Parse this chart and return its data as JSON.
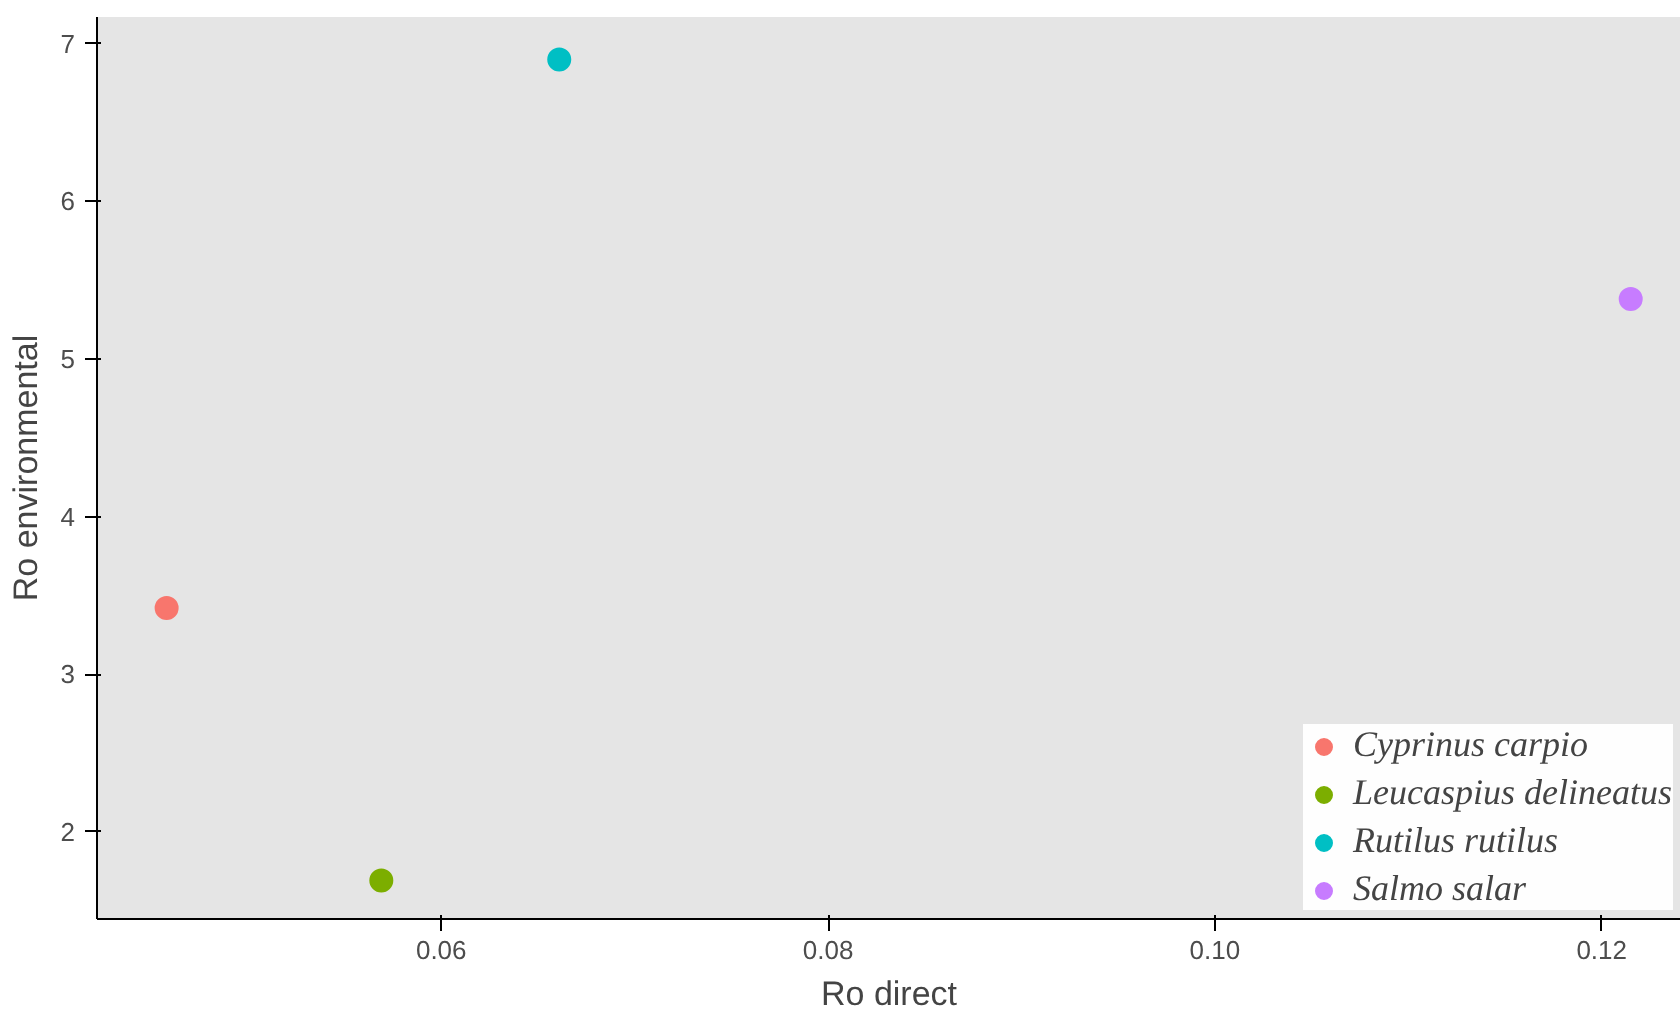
{
  "chart_data": {
    "type": "scatter",
    "xlabel": "Ro direct",
    "ylabel": "Ro environmental",
    "series": [
      {
        "name": "Cyprinus carpio",
        "color": "#f8766d",
        "x": [
          0.0458
        ],
        "values": [
          3.42
        ]
      },
      {
        "name": "Leucaspius delineatus",
        "color": "#7cae00",
        "x": [
          0.0569
        ],
        "values": [
          1.69
        ]
      },
      {
        "name": "Rutilus rutilus",
        "color": "#00bfc4",
        "x": [
          0.0661
        ],
        "values": [
          6.9
        ]
      },
      {
        "name": "Salmo salar",
        "color": "#c77cff",
        "x": [
          0.1215
        ],
        "values": [
          5.38
        ]
      }
    ],
    "xlim": [
      0.0422,
      0.1241
    ],
    "ylim": [
      1.446,
      7.17
    ],
    "xticks": [
      {
        "value": 0.06,
        "label": "0.06"
      },
      {
        "value": 0.08,
        "label": "0.08"
      },
      {
        "value": 0.1,
        "label": "0.10"
      },
      {
        "value": 0.12,
        "label": "0.12"
      }
    ],
    "yticks": [
      2,
      3,
      4,
      5,
      6,
      7
    ],
    "grid": false,
    "legend": "bottom right",
    "marker": "circle"
  }
}
